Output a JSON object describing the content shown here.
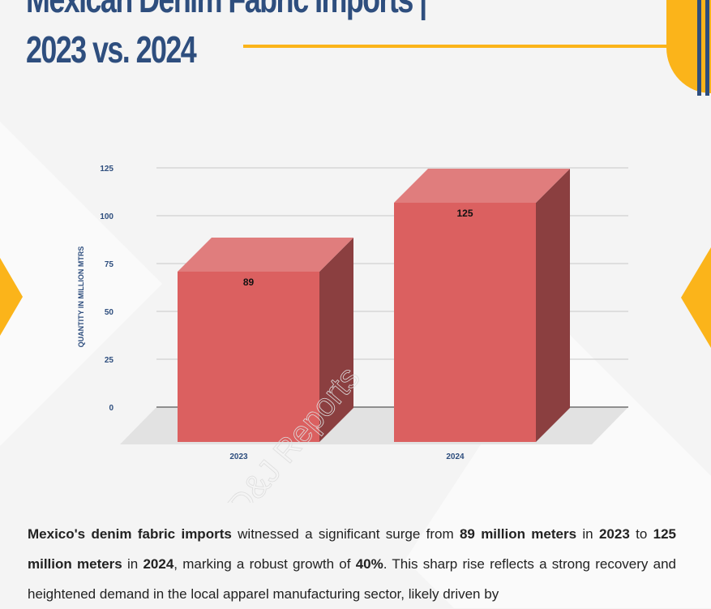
{
  "title": {
    "line1": "Mexican Denim Fabric Imports |",
    "line2": "2023 vs. 2024"
  },
  "colors": {
    "title": "#2e4e7e",
    "accent": "#fbb41a",
    "bar_front": "#db6060",
    "bar_top": "#e07d7d",
    "bar_side": "#8b3f40"
  },
  "watermark": "D&J Reports",
  "chart_data": {
    "type": "bar",
    "style": "3d",
    "categories": [
      "2023",
      "2024"
    ],
    "values": [
      89,
      125
    ],
    "data_labels": [
      "89",
      "125"
    ],
    "ylabel": "QUANTITY IN MILLION MTRS",
    "xlabel": "",
    "ylim": [
      0,
      125
    ],
    "yticks": [
      "0",
      "25",
      "50",
      "75",
      "100",
      "125"
    ],
    "grid": true
  },
  "paragraph": [
    {
      "t": "Mexico's denim fabric imports",
      "b": true
    },
    {
      "t": " witnessed a significant surge from ",
      "b": false
    },
    {
      "t": "89 million meters",
      "b": true
    },
    {
      "t": " in ",
      "b": false
    },
    {
      "t": "2023",
      "b": true
    },
    {
      "t": " to ",
      "b": false
    },
    {
      "t": "125 million meters",
      "b": true
    },
    {
      "t": " in ",
      "b": false
    },
    {
      "t": "2024",
      "b": true
    },
    {
      "t": ", marking a robust growth of ",
      "b": false
    },
    {
      "t": "40%",
      "b": true
    },
    {
      "t": ". This sharp rise reflects a strong recovery and heightened demand in the local apparel manufacturing sector, likely driven by",
      "b": false
    }
  ]
}
